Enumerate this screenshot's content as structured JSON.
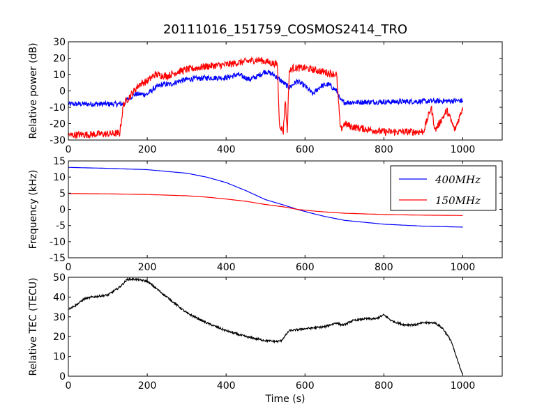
{
  "chart_data": {
    "title": "20111016_151759_COSMOS2414_TRO",
    "panels": [
      {
        "type": "line",
        "ylabel": "Relative power (dB)",
        "xlabel": "",
        "xlim": [
          0,
          1100
        ],
        "ylim": [
          -30,
          30
        ],
        "xticks": [
          0,
          200,
          400,
          600,
          800,
          1000
        ],
        "yticks": [
          -30,
          -20,
          -10,
          0,
          10,
          20,
          30
        ],
        "grid": false,
        "series": [
          {
            "color": "#0000ff",
            "noise": 1.6,
            "points": [
              [
                0,
                -8
              ],
              [
                130,
                -8
              ],
              [
                140,
                -8
              ],
              [
                150,
                -5
              ],
              [
                170,
                -2
              ],
              [
                200,
                -2
              ],
              [
                220,
                2
              ],
              [
                240,
                4
              ],
              [
                260,
                4
              ],
              [
                280,
                6
              ],
              [
                300,
                7
              ],
              [
                350,
                8
              ],
              [
                400,
                8
              ],
              [
                430,
                10
              ],
              [
                460,
                7
              ],
              [
                480,
                9
              ],
              [
                500,
                12
              ],
              [
                520,
                10
              ],
              [
                540,
                6
              ],
              [
                560,
                2
              ],
              [
                580,
                6
              ],
              [
                600,
                3
              ],
              [
                620,
                -2
              ],
              [
                640,
                3
              ],
              [
                660,
                4
              ],
              [
                680,
                0
              ],
              [
                690,
                -6
              ],
              [
                700,
                -7
              ],
              [
                1000,
                -6
              ]
            ]
          },
          {
            "color": "#ff0000",
            "noise": 2.2,
            "points": [
              [
                0,
                -27
              ],
              [
                130,
                -26
              ],
              [
                140,
                -8
              ],
              [
                160,
                -2
              ],
              [
                180,
                4
              ],
              [
                200,
                6
              ],
              [
                220,
                10
              ],
              [
                250,
                9
              ],
              [
                280,
                12
              ],
              [
                300,
                13
              ],
              [
                350,
                15
              ],
              [
                400,
                16
              ],
              [
                450,
                18
              ],
              [
                480,
                19
              ],
              [
                500,
                18
              ],
              [
                530,
                16
              ],
              [
                535,
                -20
              ],
              [
                545,
                -25
              ],
              [
                550,
                -5
              ],
              [
                555,
                -25
              ],
              [
                560,
                12
              ],
              [
                570,
                14
              ],
              [
                600,
                14
              ],
              [
                640,
                12
              ],
              [
                680,
                10
              ],
              [
                690,
                -24
              ],
              [
                700,
                -20
              ],
              [
                720,
                -22
              ],
              [
                800,
                -25
              ],
              [
                900,
                -25
              ],
              [
                920,
                -10
              ],
              [
                930,
                -24
              ],
              [
                960,
                -12
              ],
              [
                980,
                -24
              ],
              [
                1000,
                -10
              ]
            ]
          }
        ]
      },
      {
        "type": "line",
        "ylabel": "Frequency (kHz)",
        "xlabel": "",
        "xlim": [
          0,
          1100
        ],
        "ylim": [
          -15,
          15
        ],
        "xticks": [
          0,
          200,
          400,
          600,
          800,
          1000
        ],
        "yticks": [
          -15,
          -10,
          -5,
          0,
          5,
          10,
          15
        ],
        "grid": false,
        "legend": "top-right",
        "series": [
          {
            "name": "400MHz",
            "color": "#0000ff",
            "noise": 0,
            "points": [
              [
                0,
                13
              ],
              [
                100,
                12.7
              ],
              [
                200,
                12.3
              ],
              [
                300,
                11.2
              ],
              [
                350,
                10
              ],
              [
                400,
                8.3
              ],
              [
                450,
                5.8
              ],
              [
                500,
                3
              ],
              [
                550,
                1.2
              ],
              [
                580,
                0
              ],
              [
                620,
                -1.3
              ],
              [
                650,
                -2.2
              ],
              [
                700,
                -3.4
              ],
              [
                800,
                -4.6
              ],
              [
                900,
                -5.2
              ],
              [
                1000,
                -5.5
              ]
            ]
          },
          {
            "name": "150MHz",
            "color": "#ff0000",
            "noise": 0,
            "points": [
              [
                0,
                4.9
              ],
              [
                100,
                4.8
              ],
              [
                200,
                4.6
              ],
              [
                300,
                4.2
              ],
              [
                350,
                3.8
              ],
              [
                400,
                3.2
              ],
              [
                450,
                2.5
              ],
              [
                500,
                1.5
              ],
              [
                550,
                0.7
              ],
              [
                580,
                0
              ],
              [
                620,
                -0.5
              ],
              [
                650,
                -0.8
              ],
              [
                700,
                -1.2
              ],
              [
                800,
                -1.6
              ],
              [
                900,
                -1.8
              ],
              [
                1000,
                -1.9
              ]
            ]
          }
        ]
      },
      {
        "type": "line",
        "ylabel": "Relative TEC (TECU)",
        "xlabel": "Time (s)",
        "xlim": [
          0,
          1100
        ],
        "ylim": [
          0,
          50
        ],
        "xticks": [
          0,
          200,
          400,
          600,
          800,
          1000
        ],
        "yticks": [
          0,
          10,
          20,
          30,
          40,
          50
        ],
        "grid": false,
        "series": [
          {
            "color": "#000000",
            "noise": 0.5,
            "points": [
              [
                0,
                34
              ],
              [
                20,
                36
              ],
              [
                40,
                39
              ],
              [
                60,
                40
              ],
              [
                100,
                41
              ],
              [
                130,
                45
              ],
              [
                150,
                49
              ],
              [
                170,
                49
              ],
              [
                200,
                48
              ],
              [
                250,
                40
              ],
              [
                300,
                32
              ],
              [
                350,
                27
              ],
              [
                400,
                23
              ],
              [
                450,
                20
              ],
              [
                500,
                18
              ],
              [
                530,
                17.5
              ],
              [
                540,
                18
              ],
              [
                560,
                23
              ],
              [
                600,
                24
              ],
              [
                650,
                25
              ],
              [
                680,
                27
              ],
              [
                690,
                26
              ],
              [
                700,
                26
              ],
              [
                720,
                28
              ],
              [
                750,
                29
              ],
              [
                780,
                29
              ],
              [
                800,
                31
              ],
              [
                820,
                28
              ],
              [
                850,
                26
              ],
              [
                880,
                26
              ],
              [
                900,
                27
              ],
              [
                930,
                27
              ],
              [
                950,
                24
              ],
              [
                970,
                18
              ],
              [
                990,
                6
              ],
              [
                1000,
                1
              ]
            ]
          }
        ]
      }
    ]
  }
}
